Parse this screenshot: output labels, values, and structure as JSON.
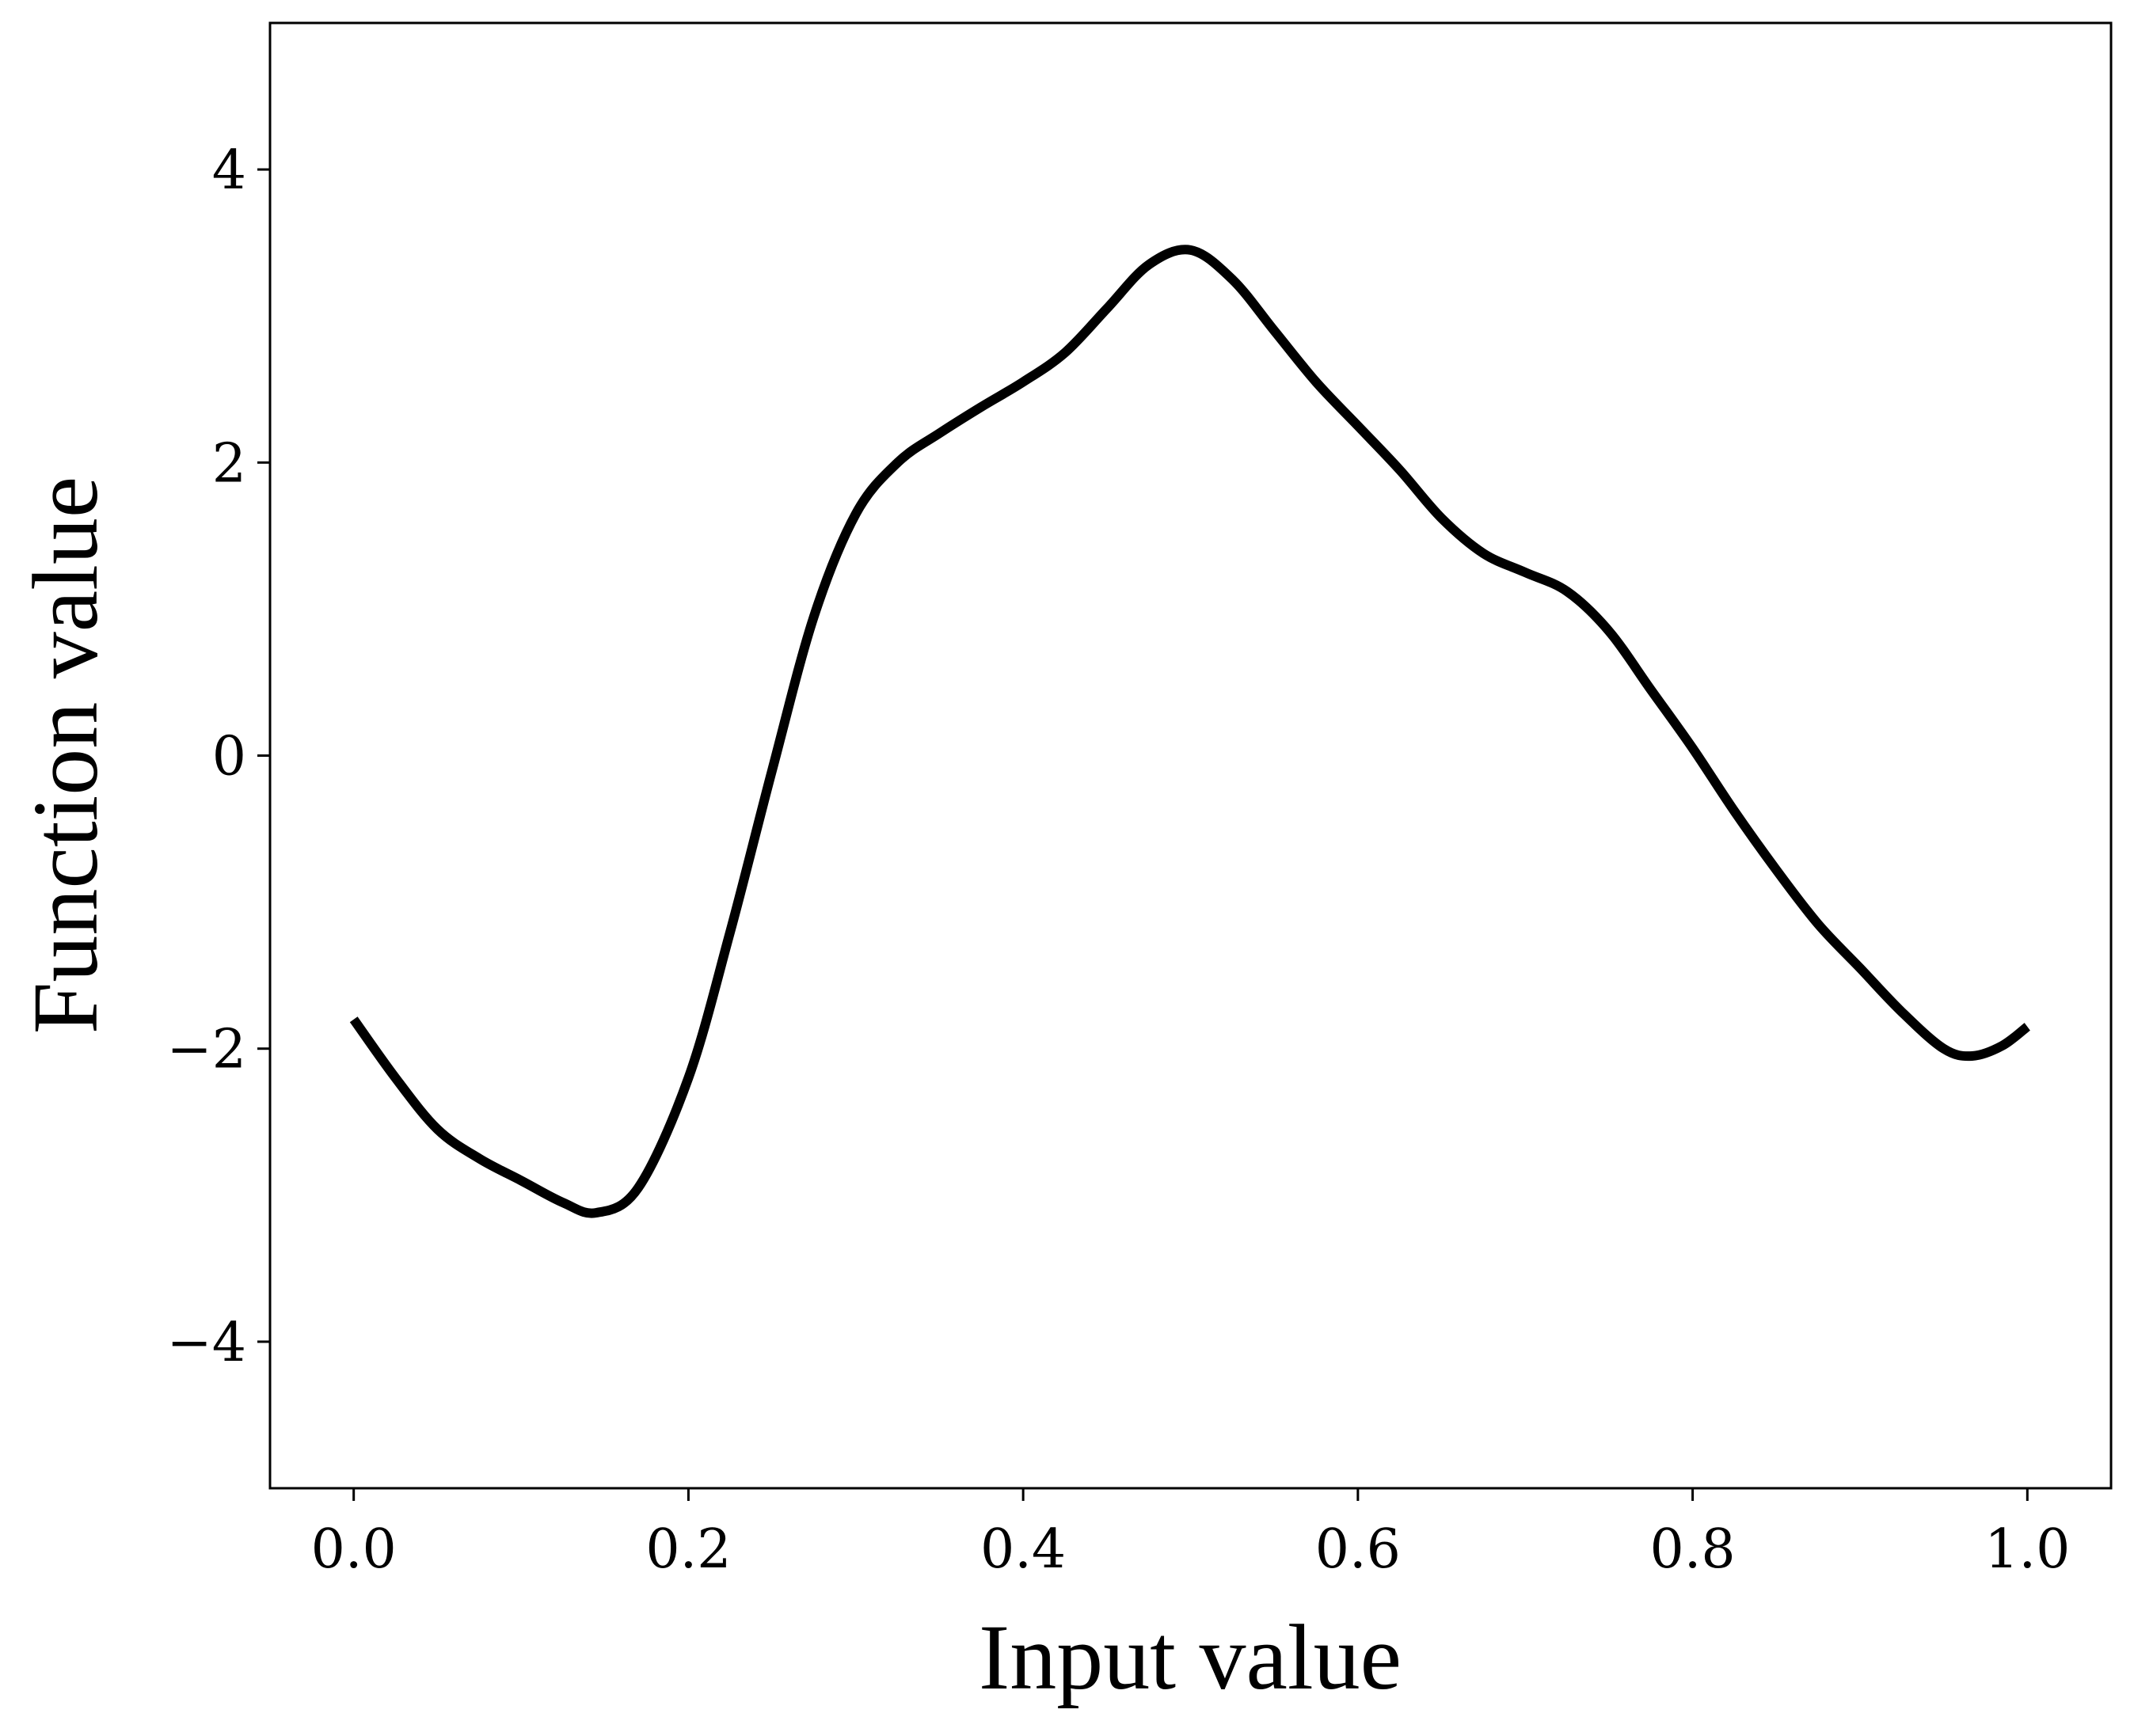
{
  "chart_data": {
    "type": "line",
    "title": "",
    "xlabel": "Input value",
    "ylabel": "Function value",
    "xlim": [
      -0.05,
      1.05
    ],
    "ylim": [
      -5,
      5
    ],
    "xticks": [
      0.0,
      0.2,
      0.4,
      0.6,
      0.8,
      1.0
    ],
    "xtick_labels": [
      "0.0",
      "0.2",
      "0.4",
      "0.6",
      "0.8",
      "1.0"
    ],
    "yticks": [
      -4,
      -2,
      0,
      2,
      4
    ],
    "ytick_labels": [
      "−4",
      "−2",
      "0",
      "2",
      "4"
    ],
    "grid": false,
    "legend": "none",
    "line_color": "#000000",
    "series": [
      {
        "x": [
          0.0,
          0.025,
          0.05,
          0.075,
          0.1,
          0.125,
          0.145,
          0.17,
          0.2,
          0.225,
          0.25,
          0.275,
          0.3,
          0.325,
          0.35,
          0.375,
          0.4,
          0.425,
          0.45,
          0.475,
          0.5,
          0.525,
          0.55,
          0.575,
          0.6,
          0.625,
          0.65,
          0.675,
          0.7,
          0.725,
          0.75,
          0.775,
          0.8,
          0.825,
          0.85,
          0.875,
          0.9,
          0.925,
          0.95,
          0.967,
          0.985,
          1.0
        ],
        "y": [
          -1.8,
          -2.2,
          -2.55,
          -2.75,
          -2.9,
          -3.05,
          -3.12,
          -2.95,
          -2.2,
          -1.2,
          -0.1,
          0.95,
          1.65,
          2.0,
          2.2,
          2.38,
          2.55,
          2.75,
          3.05,
          3.35,
          3.45,
          3.25,
          2.9,
          2.55,
          2.25,
          1.95,
          1.62,
          1.38,
          1.25,
          1.12,
          0.85,
          0.45,
          0.05,
          -0.38,
          -0.78,
          -1.15,
          -1.45,
          -1.75,
          -2.0,
          -2.05,
          -1.98,
          -1.85
        ]
      }
    ]
  }
}
